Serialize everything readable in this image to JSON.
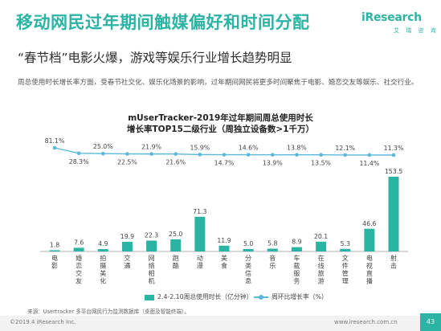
{
  "header": {
    "title": "移动网民过年期间触媒偏好和时间分配",
    "subtitle": "“春节档”电影火爆，游戏等娱乐行业增长趋势明显",
    "description": "周总使用时长增长率方面，受春节社交化、娱乐化场景的影响，过年期间网民将更多时间聚焦于电影、婚恋交友等娱乐、社交行业。"
  },
  "logo": {
    "main": "iResearch",
    "sub": "艾 瑞 咨 询"
  },
  "chart_data": {
    "type": "bar",
    "title_line1": "mUserTracker-2019年过年期间周总使用时长",
    "title_line2": "增长率TOP15二级行业（周独立设备数>1千万）",
    "categories": [
      "电影",
      "婚恋交友",
      "拍摄美化",
      "交通",
      "网络相机",
      "跑酷",
      "动漫",
      "美食",
      "分类信息",
      "音乐",
      "车载服务",
      "在线旅游",
      "文件管理",
      "电视直播",
      "射击"
    ],
    "series": [
      {
        "name": "2.4-2.10周总使用时长（亿分钟）",
        "kind": "bar",
        "values": [
          1.8,
          7.6,
          4.9,
          19.9,
          22.3,
          25.0,
          71.3,
          11.9,
          5.0,
          5.8,
          8.9,
          20.1,
          5.3,
          46.6,
          153.5
        ],
        "labels": [
          "1.8",
          "7.6",
          "4.9",
          "19.9",
          "22.3",
          "25.0",
          "71.3",
          "11.9",
          "5.0",
          "5.8",
          "8.9",
          "20.1",
          "5.3",
          "46.6",
          "153.5"
        ]
      },
      {
        "name": "周环比增长率（%）",
        "kind": "line",
        "values": [
          81.1,
          28.3,
          25.0,
          22.5,
          21.9,
          21.6,
          15.9,
          14.7,
          14.6,
          13.9,
          13.8,
          13.5,
          12.1,
          11.4,
          11.3
        ],
        "labels": [
          "81.1%",
          "28.3%",
          "25.0%",
          "22.5%",
          "21.9%",
          "21.6%",
          "15.9%",
          "14.7%",
          "14.6%",
          "13.9%",
          "13.8%",
          "13.5%",
          "12.1%",
          "11.4%",
          "11.3%"
        ]
      }
    ],
    "legend_position": "bottom",
    "grid": false
  },
  "colors": {
    "bar": "#2bb3a3",
    "line": "#5cb8d8",
    "title": "#2bb3a3"
  },
  "source": "来源：Usertracker 多平台网民行为监测数据库（桌面及智能终端）。",
  "footer": {
    "copyright": "©2019.4 iResearch Inc.",
    "website": "www.iresearch.com.cn",
    "page": "43"
  }
}
